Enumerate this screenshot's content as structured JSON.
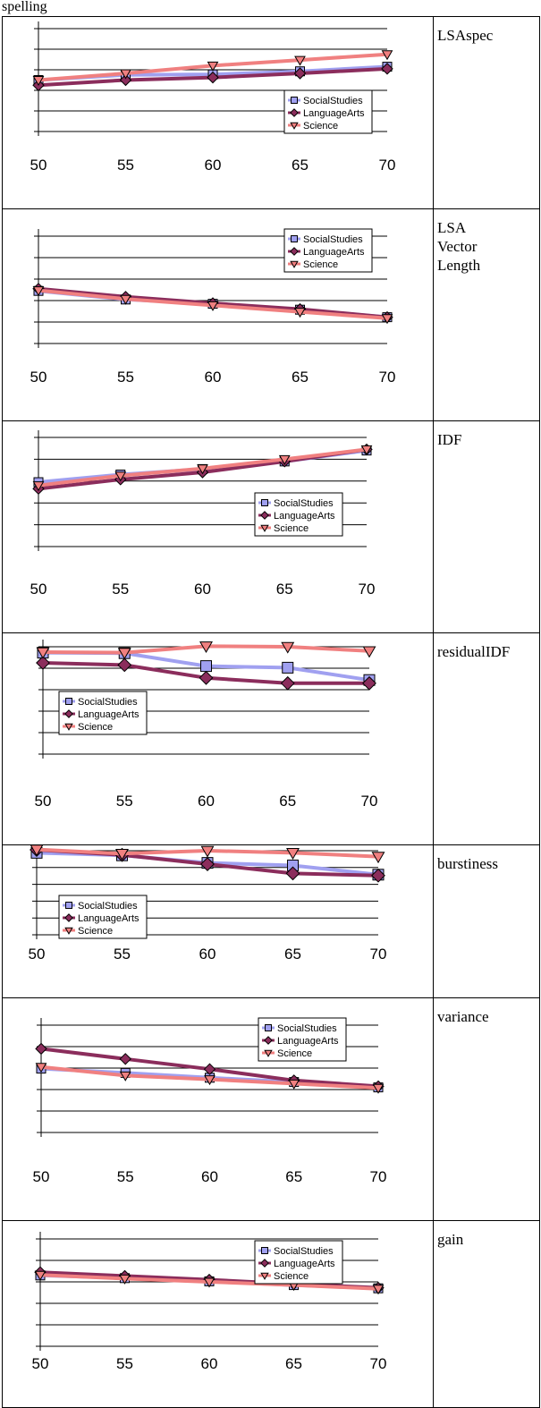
{
  "page": {
    "top_text": "spelling"
  },
  "colors": {
    "SocialStudies": "#a0a0f0",
    "LanguageArts": "#8b2d5c",
    "Science": "#f08080",
    "marker_edge": "#000000"
  },
  "chart_data": [
    {
      "type": "line",
      "label": "LSAspec",
      "x": [
        50,
        55,
        60,
        65,
        70
      ],
      "ylim": [
        0,
        10
      ],
      "legend": "bottom-right",
      "grid": true,
      "series": [
        {
          "name": "SocialStudies",
          "values": [
            5.0,
            5.5,
            5.55,
            5.85,
            6.3
          ]
        },
        {
          "name": "LanguageArts",
          "values": [
            4.5,
            5.0,
            5.25,
            5.65,
            6.1
          ]
        },
        {
          "name": "Science",
          "values": [
            5.0,
            5.65,
            6.4,
            6.95,
            7.5
          ]
        }
      ]
    },
    {
      "type": "line",
      "label": "LSA\nVector\nLength",
      "x": [
        50,
        55,
        60,
        65,
        70
      ],
      "ylim": [
        0,
        10
      ],
      "legend": "top-right",
      "grid": true,
      "series": [
        {
          "name": "SocialStudies",
          "values": [
            4.9,
            4.1,
            3.7,
            3.15,
            2.45
          ]
        },
        {
          "name": "LanguageArts",
          "values": [
            5.1,
            4.35,
            3.75,
            3.2,
            2.45
          ]
        },
        {
          "name": "Science",
          "values": [
            4.95,
            4.15,
            3.55,
            2.95,
            2.35
          ]
        }
      ]
    },
    {
      "type": "line",
      "label": "IDF",
      "x": [
        50,
        55,
        60,
        65,
        70
      ],
      "ylim": [
        0,
        10
      ],
      "legend": "center-right",
      "grid": true,
      "series": [
        {
          "name": "SocialStudies",
          "values": [
            5.9,
            6.6,
            7.1,
            7.8,
            8.8
          ]
        },
        {
          "name": "LanguageArts",
          "values": [
            5.3,
            6.15,
            6.8,
            7.8,
            8.9
          ]
        },
        {
          "name": "Science",
          "values": [
            5.6,
            6.5,
            7.15,
            8.0,
            8.9
          ]
        }
      ]
    },
    {
      "type": "line",
      "label": "residualIDF",
      "x": [
        50,
        55,
        60,
        65,
        70
      ],
      "ylim": [
        0,
        10
      ],
      "legend": "bottom-left",
      "grid": true,
      "series": [
        {
          "name": "SocialStudies",
          "values": [
            9.45,
            9.4,
            8.2,
            8.05,
            6.9
          ]
        },
        {
          "name": "LanguageArts",
          "values": [
            8.5,
            8.3,
            7.1,
            6.6,
            6.6
          ]
        },
        {
          "name": "Science",
          "values": [
            9.5,
            9.45,
            10.05,
            10.0,
            9.6
          ]
        }
      ]
    },
    {
      "type": "line",
      "label": "burstiness",
      "x": [
        50,
        55,
        60,
        65,
        70
      ],
      "ylim": [
        0,
        10
      ],
      "legend": "bottom-left",
      "grid": true,
      "series": [
        {
          "name": "SocialStudies",
          "values": [
            9.75,
            9.45,
            8.55,
            8.25,
            7.15
          ]
        },
        {
          "name": "LanguageArts",
          "values": [
            10.1,
            9.5,
            8.4,
            7.3,
            7.05
          ]
        },
        {
          "name": "Science",
          "values": [
            10.15,
            9.65,
            10.0,
            9.75,
            9.3
          ]
        }
      ]
    },
    {
      "type": "line",
      "label": "variance",
      "x": [
        50,
        55,
        60,
        65,
        70
      ],
      "ylim": [
        0,
        10
      ],
      "legend": "top-right",
      "grid": true,
      "series": [
        {
          "name": "SocialStudies",
          "values": [
            5.95,
            5.55,
            5.1,
            4.7,
            4.2
          ]
        },
        {
          "name": "LanguageArts",
          "values": [
            7.8,
            6.85,
            5.9,
            4.85,
            4.3
          ]
        },
        {
          "name": "Science",
          "values": [
            6.1,
            5.3,
            4.95,
            4.55,
            4.15
          ]
        }
      ]
    },
    {
      "type": "line",
      "label": "gain",
      "x": [
        50,
        55,
        60,
        65,
        70
      ],
      "ylim": [
        0,
        10
      ],
      "legend": "top-right",
      "grid": true,
      "series": [
        {
          "name": "SocialStudies",
          "values": [
            6.6,
            6.35,
            6.05,
            5.7,
            5.4
          ]
        },
        {
          "name": "LanguageArts",
          "values": [
            6.9,
            6.55,
            6.2,
            5.8,
            5.45
          ]
        },
        {
          "name": "Science",
          "values": [
            6.65,
            6.3,
            6.0,
            5.7,
            5.35
          ]
        }
      ]
    }
  ]
}
